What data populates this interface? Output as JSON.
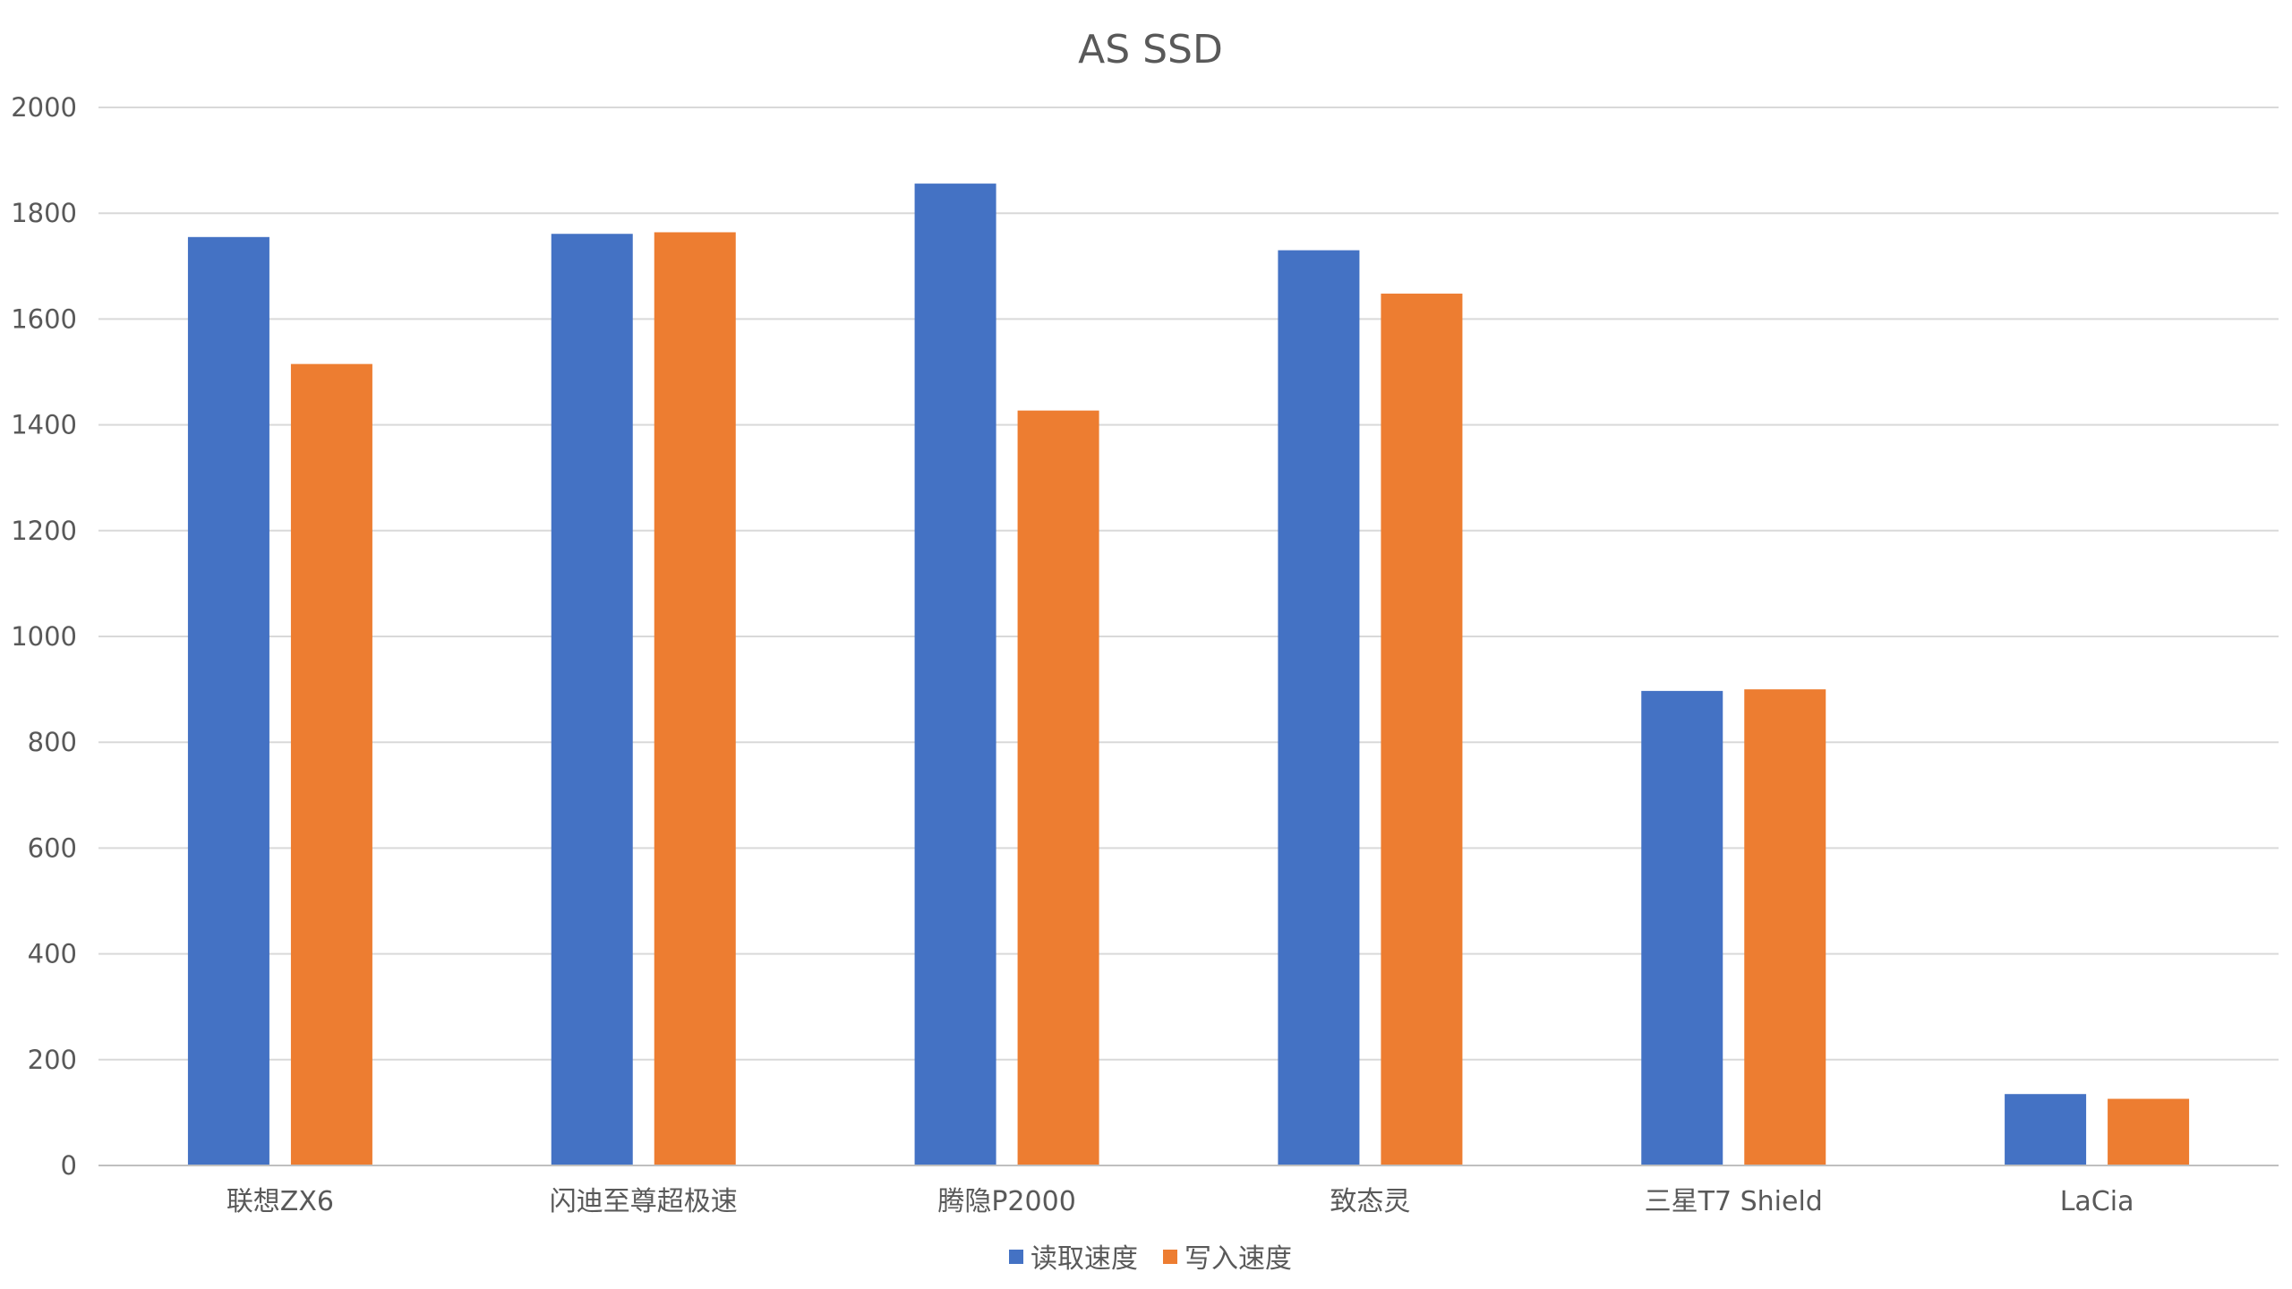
{
  "chart_data": {
    "type": "bar",
    "title": "AS SSD",
    "xlabel": "",
    "ylabel": "",
    "categories": [
      "联想ZX6",
      "闪迪至尊超极速",
      "腾隐P2000",
      "致态灵",
      "三星T7 Shield",
      "LaCia"
    ],
    "series": [
      {
        "name": "读取速度",
        "color": "#4472c4",
        "values": [
          1755,
          1761,
          1856,
          1730,
          897,
          135
        ]
      },
      {
        "name": "写入速度",
        "color": "#ed7d31",
        "values": [
          1515,
          1764,
          1427,
          1648,
          900,
          126
        ]
      }
    ],
    "ylim": [
      0,
      2000
    ],
    "yticks": [
      0,
      200,
      400,
      600,
      800,
      1000,
      1200,
      1400,
      1600,
      1800,
      2000
    ],
    "grid": true,
    "legend_position": "bottom"
  }
}
